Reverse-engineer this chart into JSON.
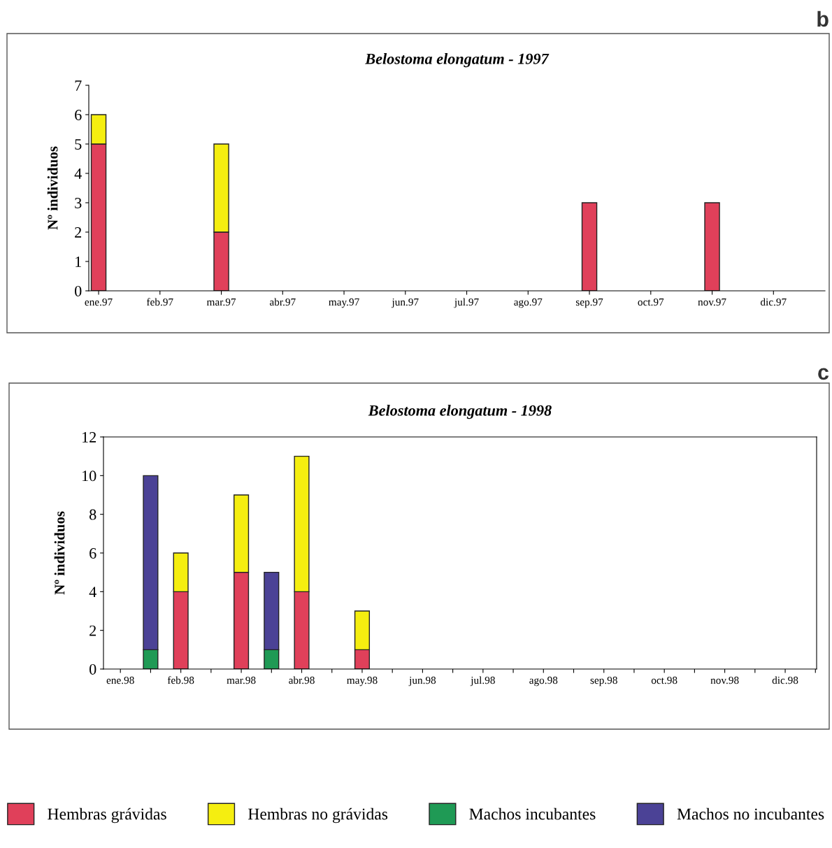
{
  "chart_data": [
    {
      "type": "bar",
      "title": "Belostoma elongatum - 1997",
      "ylabel": "Nº individuos",
      "stacked": true,
      "categories": [
        "ene.97",
        "feb.97",
        "mar.97",
        "abr.97",
        "may.97",
        "jun.97",
        "jul.97",
        "ago.97",
        "sep.97",
        "oct.97",
        "nov.97",
        "dic.97"
      ],
      "series": [
        {
          "color": "#e0405a",
          "values": [
            5,
            0,
            2,
            0,
            0,
            0,
            0,
            0,
            3,
            0,
            3,
            0
          ]
        },
        {
          "color": "#f5ee10",
          "values": [
            1,
            0,
            3,
            0,
            0,
            0,
            0,
            0,
            0,
            0,
            0,
            0
          ]
        }
      ],
      "ylim": [
        0,
        7
      ],
      "yticks": [
        0,
        1,
        2,
        3,
        4,
        5,
        6,
        7
      ],
      "grid": false,
      "annotations": [
        "b"
      ]
    },
    {
      "type": "bar",
      "title": "Belostoma elongatum - 1998",
      "ylabel": "Nº individuos",
      "stacked": true,
      "categories": [
        "ene.98",
        null,
        "feb.98",
        null,
        "mar.98",
        null,
        "abr.98",
        null,
        "may.98",
        null,
        "jun.98",
        null,
        "jul.98",
        null,
        "ago.98",
        null,
        "sep.98",
        null,
        "oct.98",
        null,
        "nov.98",
        null,
        "dic.98",
        null
      ],
      "series": [
        {
          "name": "Hembras grávidas",
          "color": "#e0405a",
          "values": [
            0,
            0,
            4,
            0,
            5,
            0,
            4,
            0,
            1,
            0,
            0,
            0,
            0,
            0,
            0,
            0,
            0,
            0,
            0,
            0,
            0,
            0,
            0,
            0
          ]
        },
        {
          "name": "Hembras no grávidas",
          "color": "#f5ee10",
          "values": [
            0,
            0,
            2,
            0,
            4,
            0,
            7,
            0,
            2,
            0,
            0,
            0,
            0,
            0,
            0,
            0,
            0,
            0,
            0,
            0,
            0,
            0,
            0,
            0
          ]
        },
        {
          "name": "Machos incubantes",
          "color": "#1f9a55",
          "values": [
            0,
            1,
            0,
            0,
            0,
            1,
            0,
            0,
            0,
            0,
            0,
            0,
            0,
            0,
            0,
            0,
            0,
            0,
            0,
            0,
            0,
            0,
            0,
            0
          ]
        },
        {
          "name": "Machos no incubantes",
          "color": "#4b4296",
          "values": [
            0,
            9,
            0,
            0,
            0,
            4,
            0,
            0,
            0,
            0,
            0,
            0,
            0,
            0,
            0,
            0,
            0,
            0,
            0,
            0,
            0,
            0,
            0,
            0
          ]
        }
      ],
      "ylim": [
        0,
        12
      ],
      "yticks": [
        0,
        2,
        4,
        6,
        8,
        10,
        12
      ],
      "grid": false,
      "legend": "bottom",
      "annotations": [
        "c"
      ]
    }
  ]
}
